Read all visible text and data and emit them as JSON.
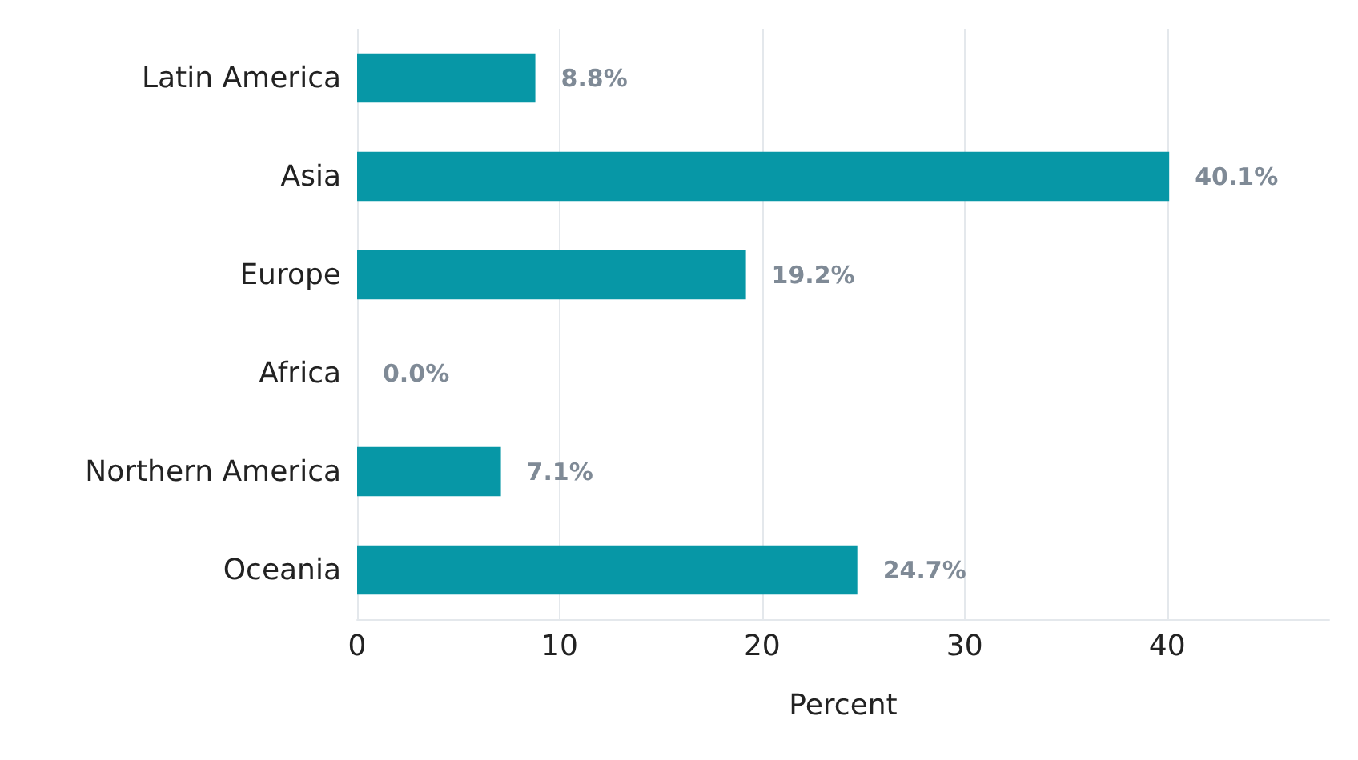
{
  "chart_data": {
    "type": "bar",
    "orientation": "horizontal",
    "xlabel": "Percent",
    "categories": [
      "Latin America",
      "Asia",
      "Europe",
      "Africa",
      "Northern America",
      "Oceania"
    ],
    "values": [
      8.8,
      40.1,
      19.2,
      0.0,
      7.1,
      24.7
    ],
    "value_labels": [
      "8.8%",
      "40.1%",
      "19.2%",
      "0.0%",
      "7.1%",
      "24.7%"
    ],
    "color": "#0797a6",
    "xlim": [
      0,
      48
    ],
    "xticks": [
      0,
      10,
      20,
      30,
      40
    ],
    "grid": "x"
  }
}
